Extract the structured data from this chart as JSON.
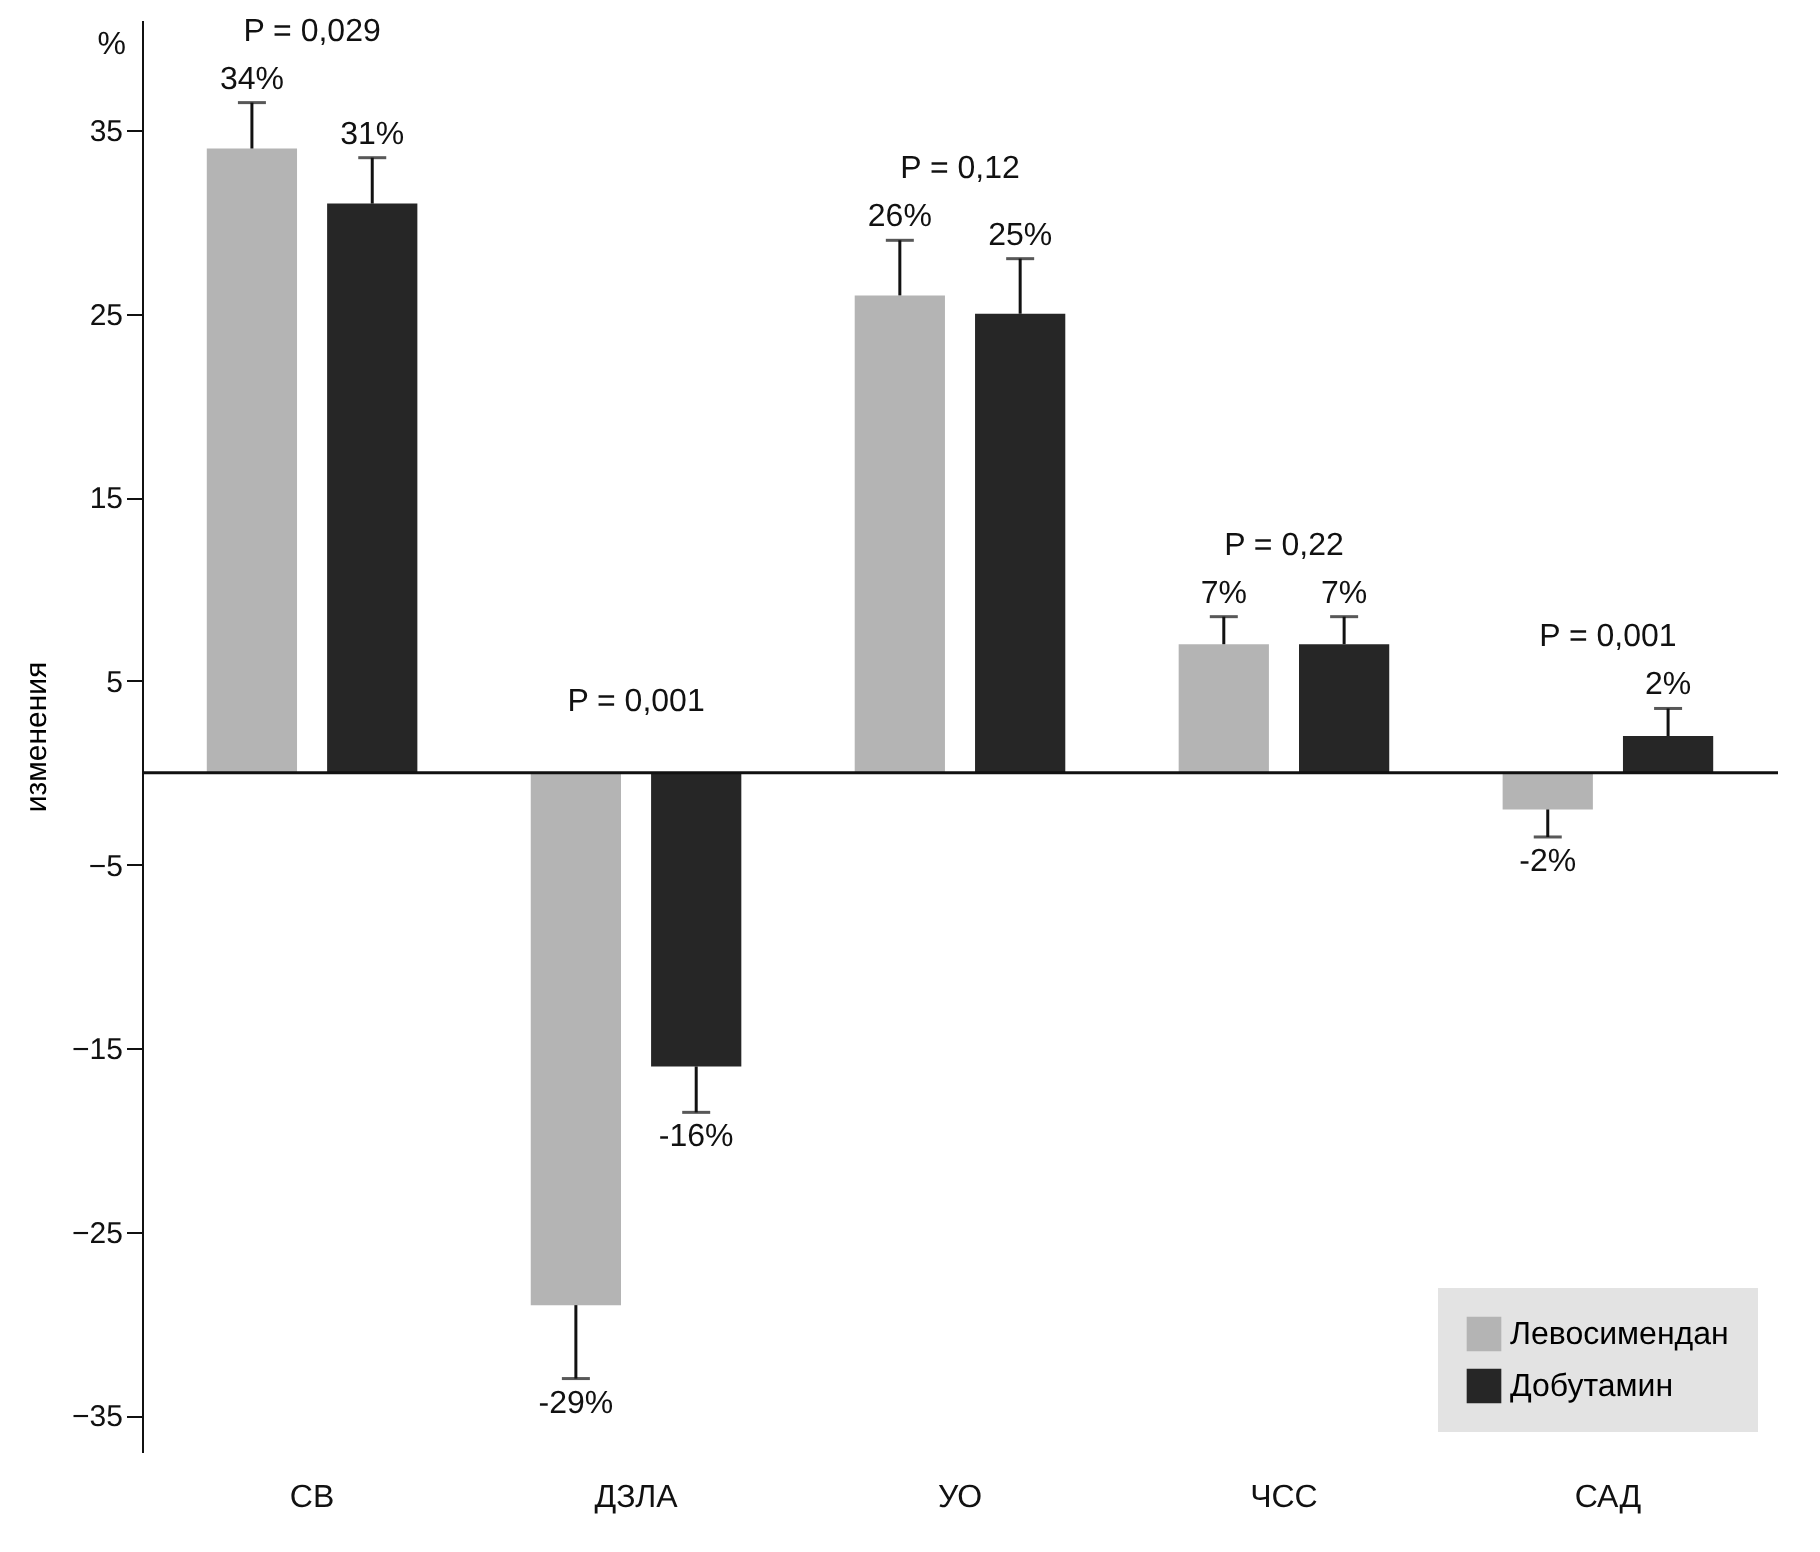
{
  "chart_data": {
    "type": "bar",
    "ylabel": "изменения",
    "categories": [
      "СВ",
      "ДЗЛА",
      "УО",
      "ЧСС",
      "САД"
    ],
    "series": [
      {
        "name": "Левосимендан",
        "color": "#b4b4b4",
        "values": [
          34,
          -29,
          26,
          7,
          -2
        ],
        "value_labels": [
          "34%",
          "-29%",
          "26%",
          "7%",
          "-2%"
        ],
        "errors": [
          [
            34,
            36.5
          ],
          [
            -33,
            -29
          ],
          [
            26,
            29
          ],
          [
            7,
            8.5
          ],
          [
            -3.5,
            -2
          ]
        ]
      },
      {
        "name": "Добутамин",
        "color": "#262626",
        "values": [
          31,
          -16,
          25,
          7,
          2
        ],
        "value_labels": [
          "31%",
          "-16%",
          "25%",
          "7%",
          "2%"
        ],
        "errors": [
          [
            31,
            33.5
          ],
          [
            -18.5,
            -16
          ],
          [
            25,
            28
          ],
          [
            7,
            8.5
          ],
          [
            2,
            3.5
          ]
        ]
      }
    ],
    "ylim": [
      -37,
      41
    ],
    "yticks": [
      -35,
      -25,
      -15,
      -5,
      5,
      15,
      25,
      35
    ],
    "legend": "bottom right",
    "grid": false,
    "annotations": [
      "%",
      "P = 0,029",
      "P = 0,001",
      "P = 0,12",
      "P = 0,22",
      "P = 0,001"
    ]
  }
}
